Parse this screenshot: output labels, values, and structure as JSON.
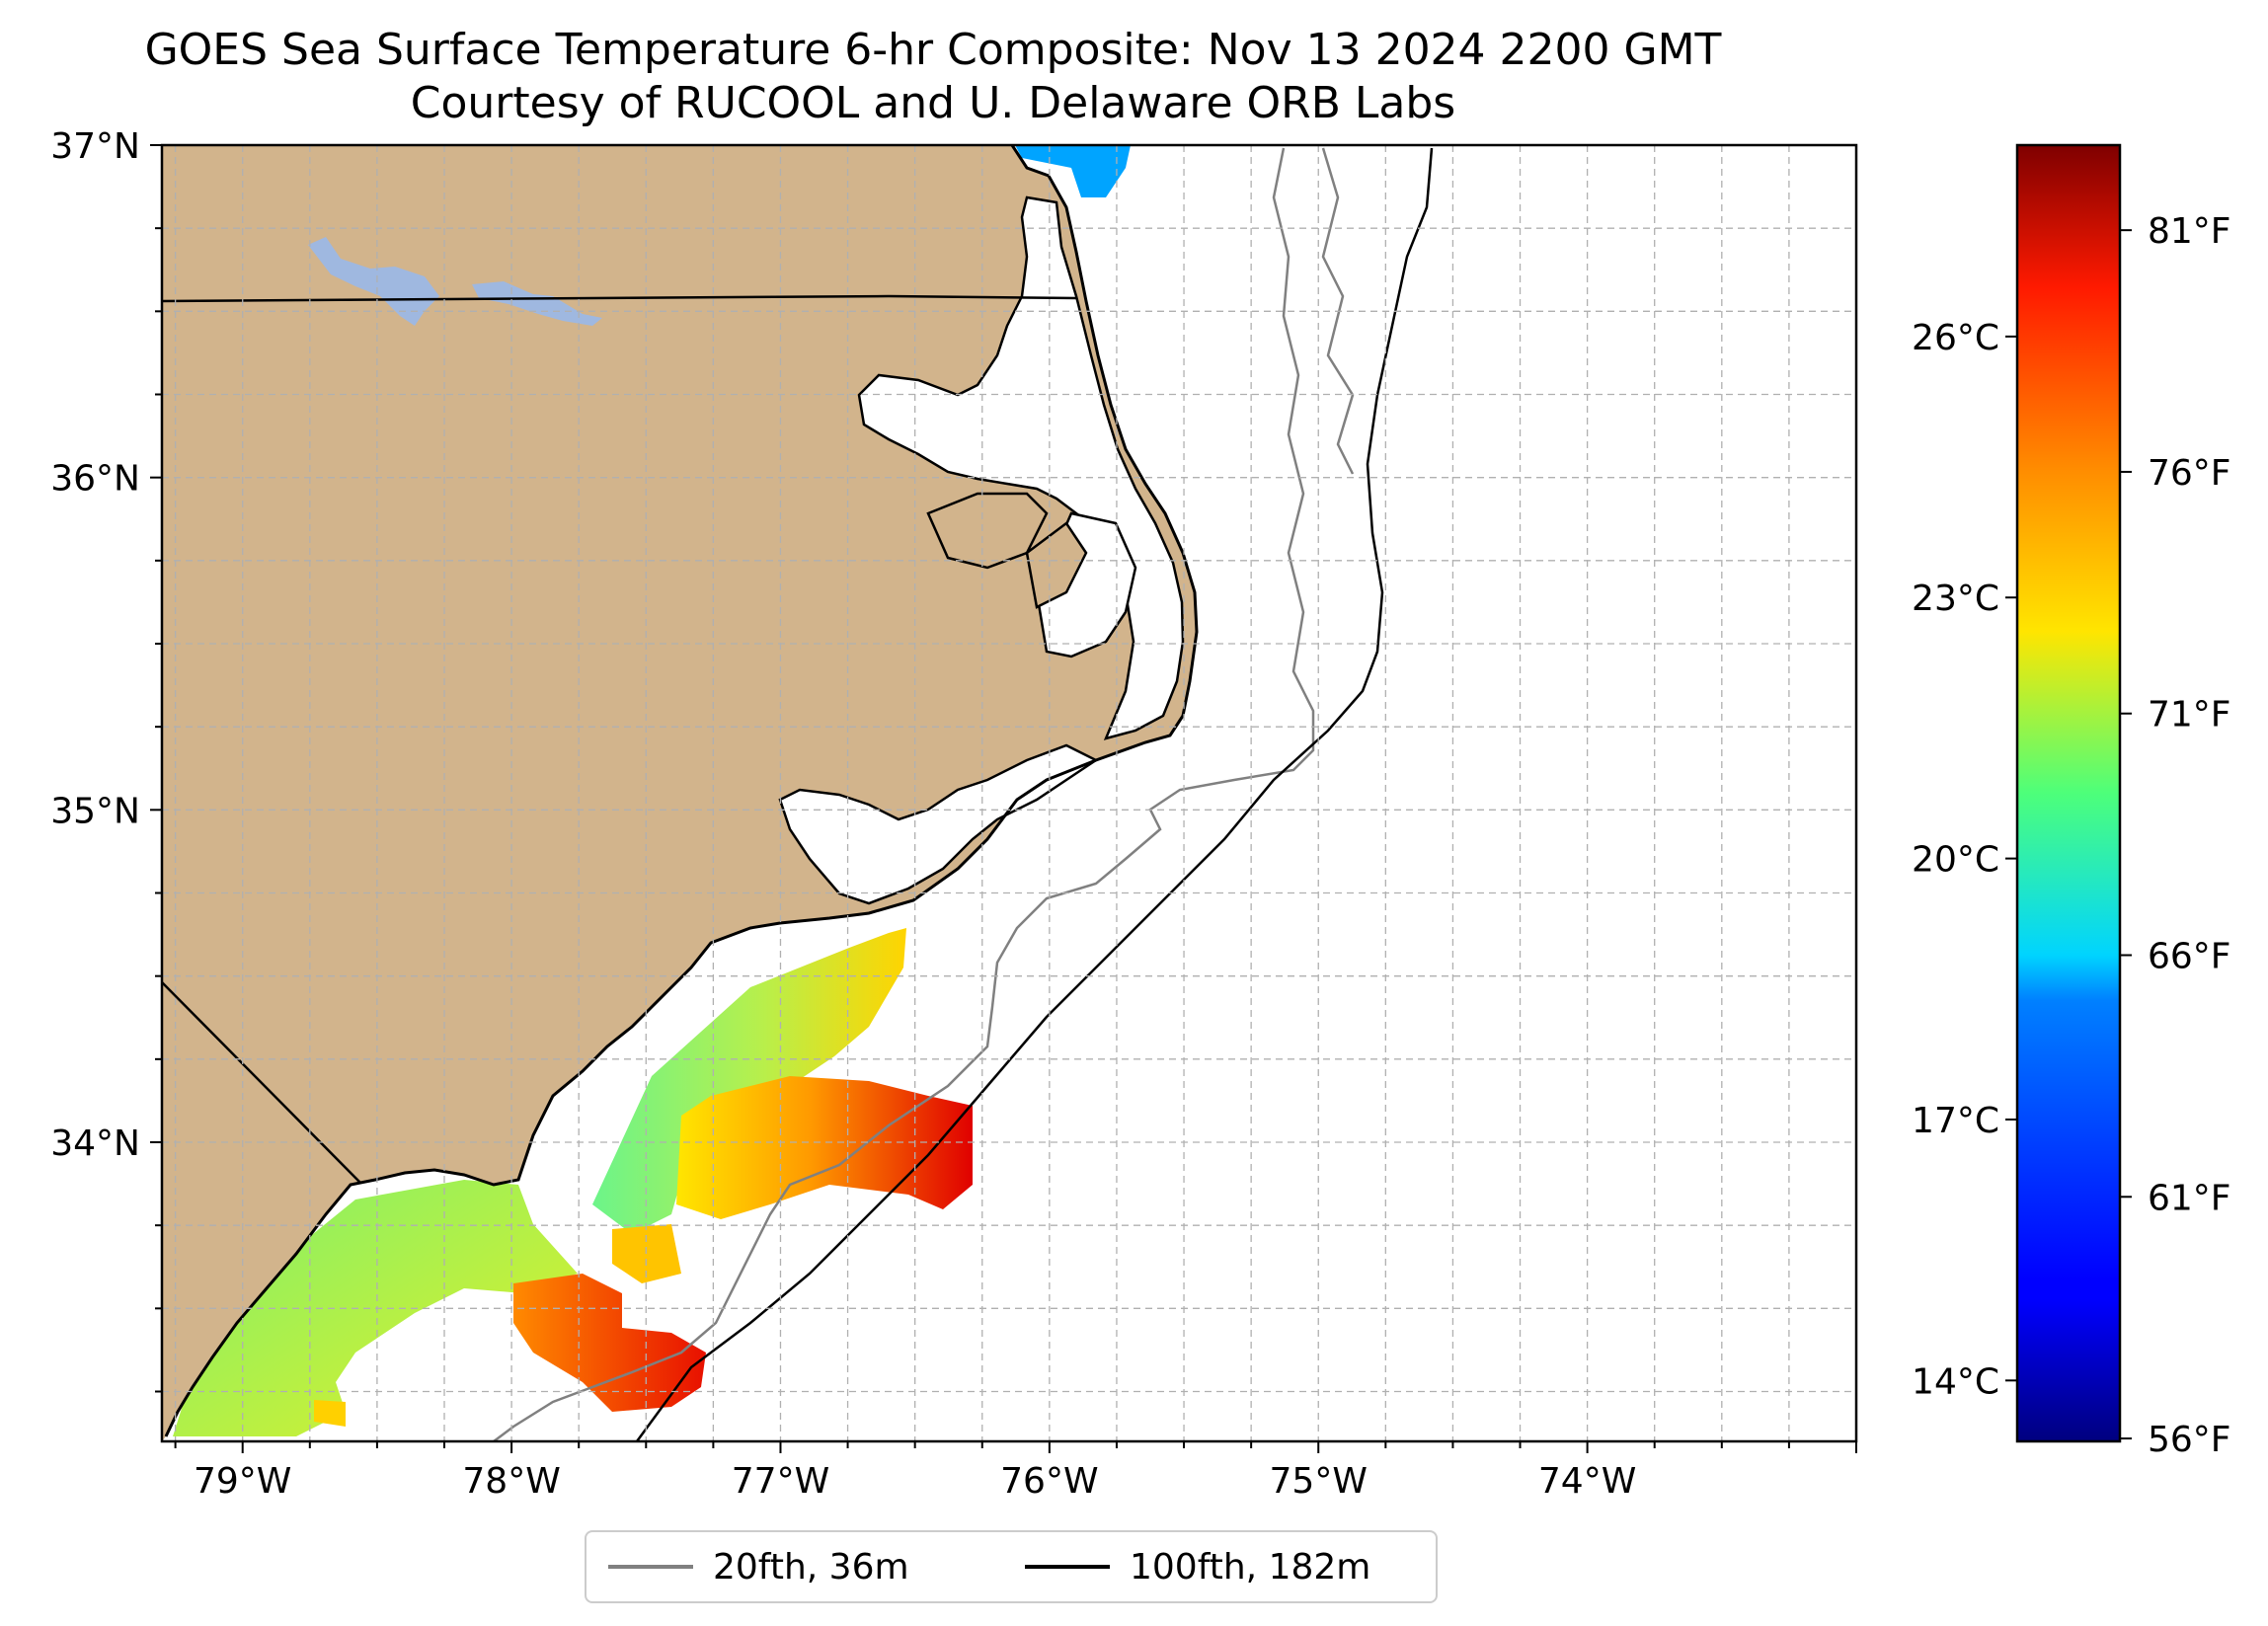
{
  "title": {
    "line1": "GOES Sea Surface Temperature 6-hr Composite: Nov 13 2024 2200 GMT",
    "line2": "Courtesy of RUCOOL and U. Delaware ORB Labs"
  },
  "map": {
    "lon_range": [
      -79.3,
      -73.0
    ],
    "lat_range": [
      33.1,
      37.0
    ],
    "lon_ticks": [
      {
        "value": -79,
        "label": "79°W"
      },
      {
        "value": -78,
        "label": "78°W"
      },
      {
        "value": -77,
        "label": "77°W"
      },
      {
        "value": -76,
        "label": "76°W"
      },
      {
        "value": -75,
        "label": "75°W"
      },
      {
        "value": -74,
        "label": "74°W"
      }
    ],
    "lat_ticks": [
      {
        "value": 37,
        "label": "37°N"
      },
      {
        "value": 36,
        "label": "36°N"
      },
      {
        "value": 35,
        "label": "35°N"
      },
      {
        "value": 34,
        "label": "34°N"
      }
    ],
    "gridline_step_deg": 0.25,
    "colors": {
      "land": "#d2b48c",
      "ocean": "#ffffff",
      "lake": "#9fb8e0",
      "coastline": "#000000",
      "isobath_20": "#808080",
      "isobath_100": "#000000",
      "grid": "#b0b0b0"
    }
  },
  "colorbar": {
    "colormap": "jet",
    "range_c": [
      13.3,
      28.2
    ],
    "celsius_ticks": [
      {
        "value": 26,
        "label": "26°C"
      },
      {
        "value": 23,
        "label": "23°C"
      },
      {
        "value": 20,
        "label": "20°C"
      },
      {
        "value": 17,
        "label": "17°C"
      },
      {
        "value": 14,
        "label": "14°C"
      }
    ],
    "fahrenheit_ticks": [
      {
        "value": 81,
        "label": "81°F"
      },
      {
        "value": 76,
        "label": "76°F"
      },
      {
        "value": 71,
        "label": "71°F"
      },
      {
        "value": 66,
        "label": "66°F"
      },
      {
        "value": 61,
        "label": "61°F"
      },
      {
        "value": 56,
        "label": "56°F"
      }
    ]
  },
  "legend": {
    "items": [
      {
        "label": "20fth, 36m",
        "color": "#808080"
      },
      {
        "label": "100fth, 182m",
        "color": "#000000"
      }
    ]
  }
}
